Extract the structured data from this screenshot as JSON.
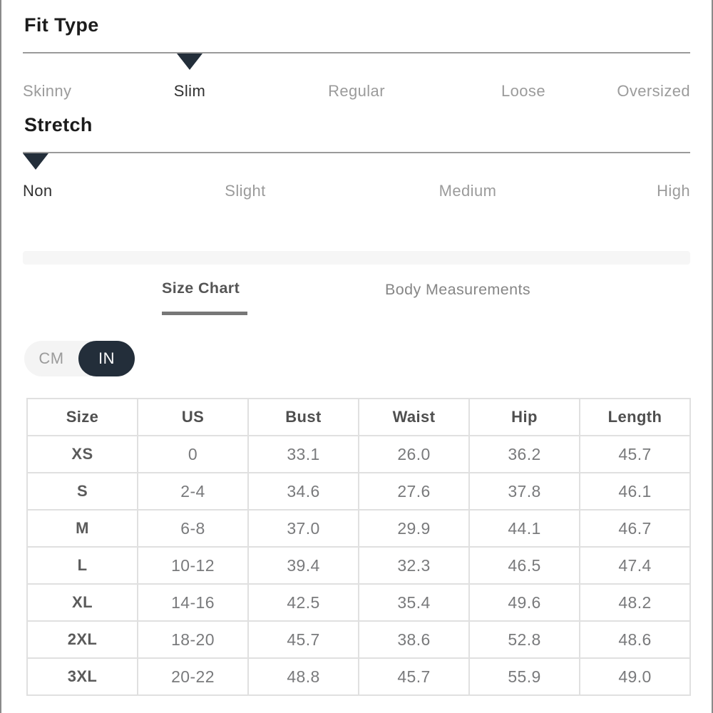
{
  "fit_type": {
    "title": "Fit Type",
    "options": [
      "Skinny",
      "Slim",
      "Regular",
      "Loose",
      "Oversized"
    ],
    "selected": "Slim",
    "selected_index": 1
  },
  "stretch": {
    "title": "Stretch",
    "options": [
      "Non",
      "Slight",
      "Medium",
      "High"
    ],
    "selected": "Non",
    "selected_index": 0
  },
  "tabs": [
    {
      "label": "Size Chart",
      "active": true
    },
    {
      "label": "Body Measurements",
      "active": false
    }
  ],
  "unit_toggle": {
    "options": [
      "CM",
      "IN"
    ],
    "selected": "IN"
  },
  "size_table": {
    "headers": [
      "Size",
      "US",
      "Bust",
      "Waist",
      "Hip",
      "Length"
    ],
    "rows": [
      [
        "XS",
        "0",
        "33.1",
        "26.0",
        "36.2",
        "45.7"
      ],
      [
        "S",
        "2-4",
        "34.6",
        "27.6",
        "37.8",
        "46.1"
      ],
      [
        "M",
        "6-8",
        "37.0",
        "29.9",
        "44.1",
        "46.7"
      ],
      [
        "L",
        "10-12",
        "39.4",
        "32.3",
        "46.5",
        "47.4"
      ],
      [
        "XL",
        "14-16",
        "42.5",
        "35.4",
        "49.6",
        "48.2"
      ],
      [
        "2XL",
        "18-20",
        "45.7",
        "38.6",
        "52.8",
        "48.6"
      ],
      [
        "3XL",
        "20-22",
        "48.8",
        "45.7",
        "55.9",
        "49.0"
      ]
    ]
  },
  "colors": {
    "accent": "#232e3a",
    "heading": "#1c1c1c",
    "label_active": "#303030",
    "label_inactive": "#9b9b9b",
    "track": "#9a9a9a",
    "band": "#f6f6f6",
    "tab_active": "#555555",
    "tab_inactive": "#868686",
    "tab_underline": "#777777",
    "table_border": "#e0e0e0",
    "header_text": "#4f4f4f",
    "cell_text": "#797a7c",
    "toggle_bg": "#f4f4f4",
    "page_border": "#8a8a8a"
  }
}
